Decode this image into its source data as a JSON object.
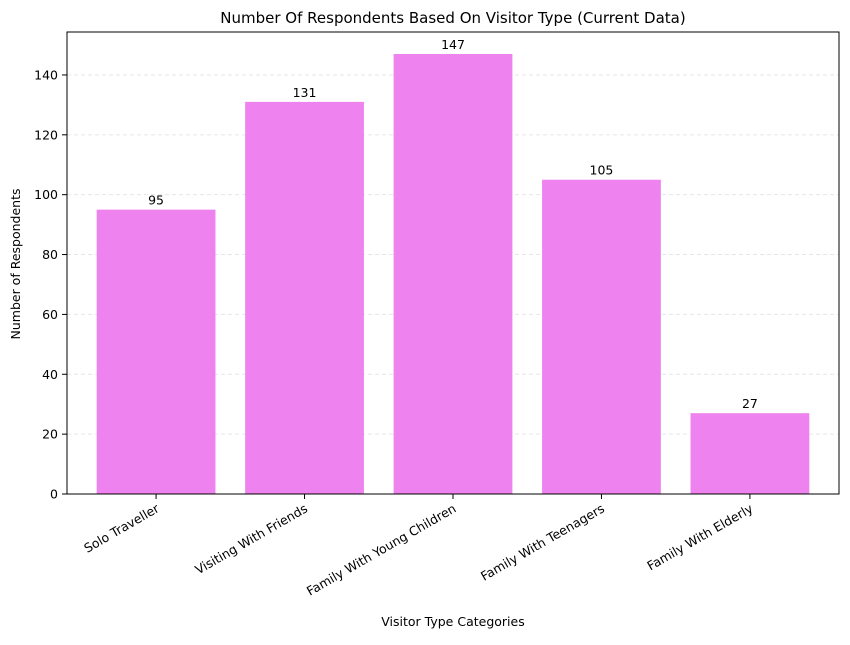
{
  "chart_data": {
    "type": "bar",
    "title": "Number Of Respondents Based On Visitor Type (Current Data)",
    "xlabel": "Visitor Type Categories",
    "ylabel": "Number of Respondents",
    "categories": [
      "Solo Traveller",
      "Visiting With Friends",
      "Family With Young Children",
      "Family With Teenagers",
      "Family With Elderly"
    ],
    "values": [
      95,
      131,
      147,
      105,
      27
    ],
    "ylim": [
      0,
      154.35
    ],
    "yticks": [
      0,
      20,
      40,
      60,
      80,
      100,
      120,
      140
    ],
    "grid": "y-dashed",
    "legend": "none",
    "colors": {
      "bar": "#ee82ee",
      "grid": "#e6e6e6",
      "axis": "#000000"
    }
  }
}
